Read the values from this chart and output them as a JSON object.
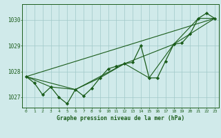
{
  "title": "Graphe pression niveau de la mer (hPa)",
  "bg_color": "#d0eaea",
  "grid_color": "#a0c8c8",
  "line_color": "#1a5c1a",
  "x_min": -0.5,
  "x_max": 23.5,
  "y_min": 1026.6,
  "y_max": 1030.6,
  "y_ticks": [
    1027,
    1028,
    1029,
    1030
  ],
  "x_ticks": [
    0,
    1,
    2,
    3,
    4,
    5,
    6,
    7,
    8,
    9,
    10,
    11,
    12,
    13,
    14,
    15,
    16,
    17,
    18,
    19,
    20,
    21,
    22,
    23
  ],
  "series_main": {
    "x": [
      0,
      1,
      2,
      3,
      4,
      5,
      6,
      7,
      8,
      9,
      10,
      11,
      12,
      13,
      14,
      15,
      16,
      17,
      18,
      19,
      20,
      21,
      22,
      23
    ],
    "y": [
      1027.8,
      1027.55,
      1027.1,
      1027.4,
      1027.0,
      1026.75,
      1027.3,
      1027.05,
      1027.35,
      1027.75,
      1028.1,
      1028.2,
      1028.3,
      1028.35,
      1029.0,
      1027.75,
      1027.75,
      1028.4,
      1029.05,
      1029.1,
      1029.45,
      1030.05,
      1030.25,
      1030.05
    ]
  },
  "series_linear": {
    "x": [
      0,
      23
    ],
    "y": [
      1027.8,
      1030.05
    ]
  },
  "series_6h": {
    "x": [
      0,
      6,
      12,
      18,
      23
    ],
    "y": [
      1027.8,
      1027.3,
      1028.3,
      1029.05,
      1030.05
    ]
  },
  "series_3h": {
    "x": [
      0,
      3,
      6,
      9,
      12,
      15,
      18,
      21,
      23
    ],
    "y": [
      1027.8,
      1027.4,
      1027.3,
      1027.75,
      1028.3,
      1027.75,
      1029.05,
      1030.05,
      1030.05
    ]
  }
}
